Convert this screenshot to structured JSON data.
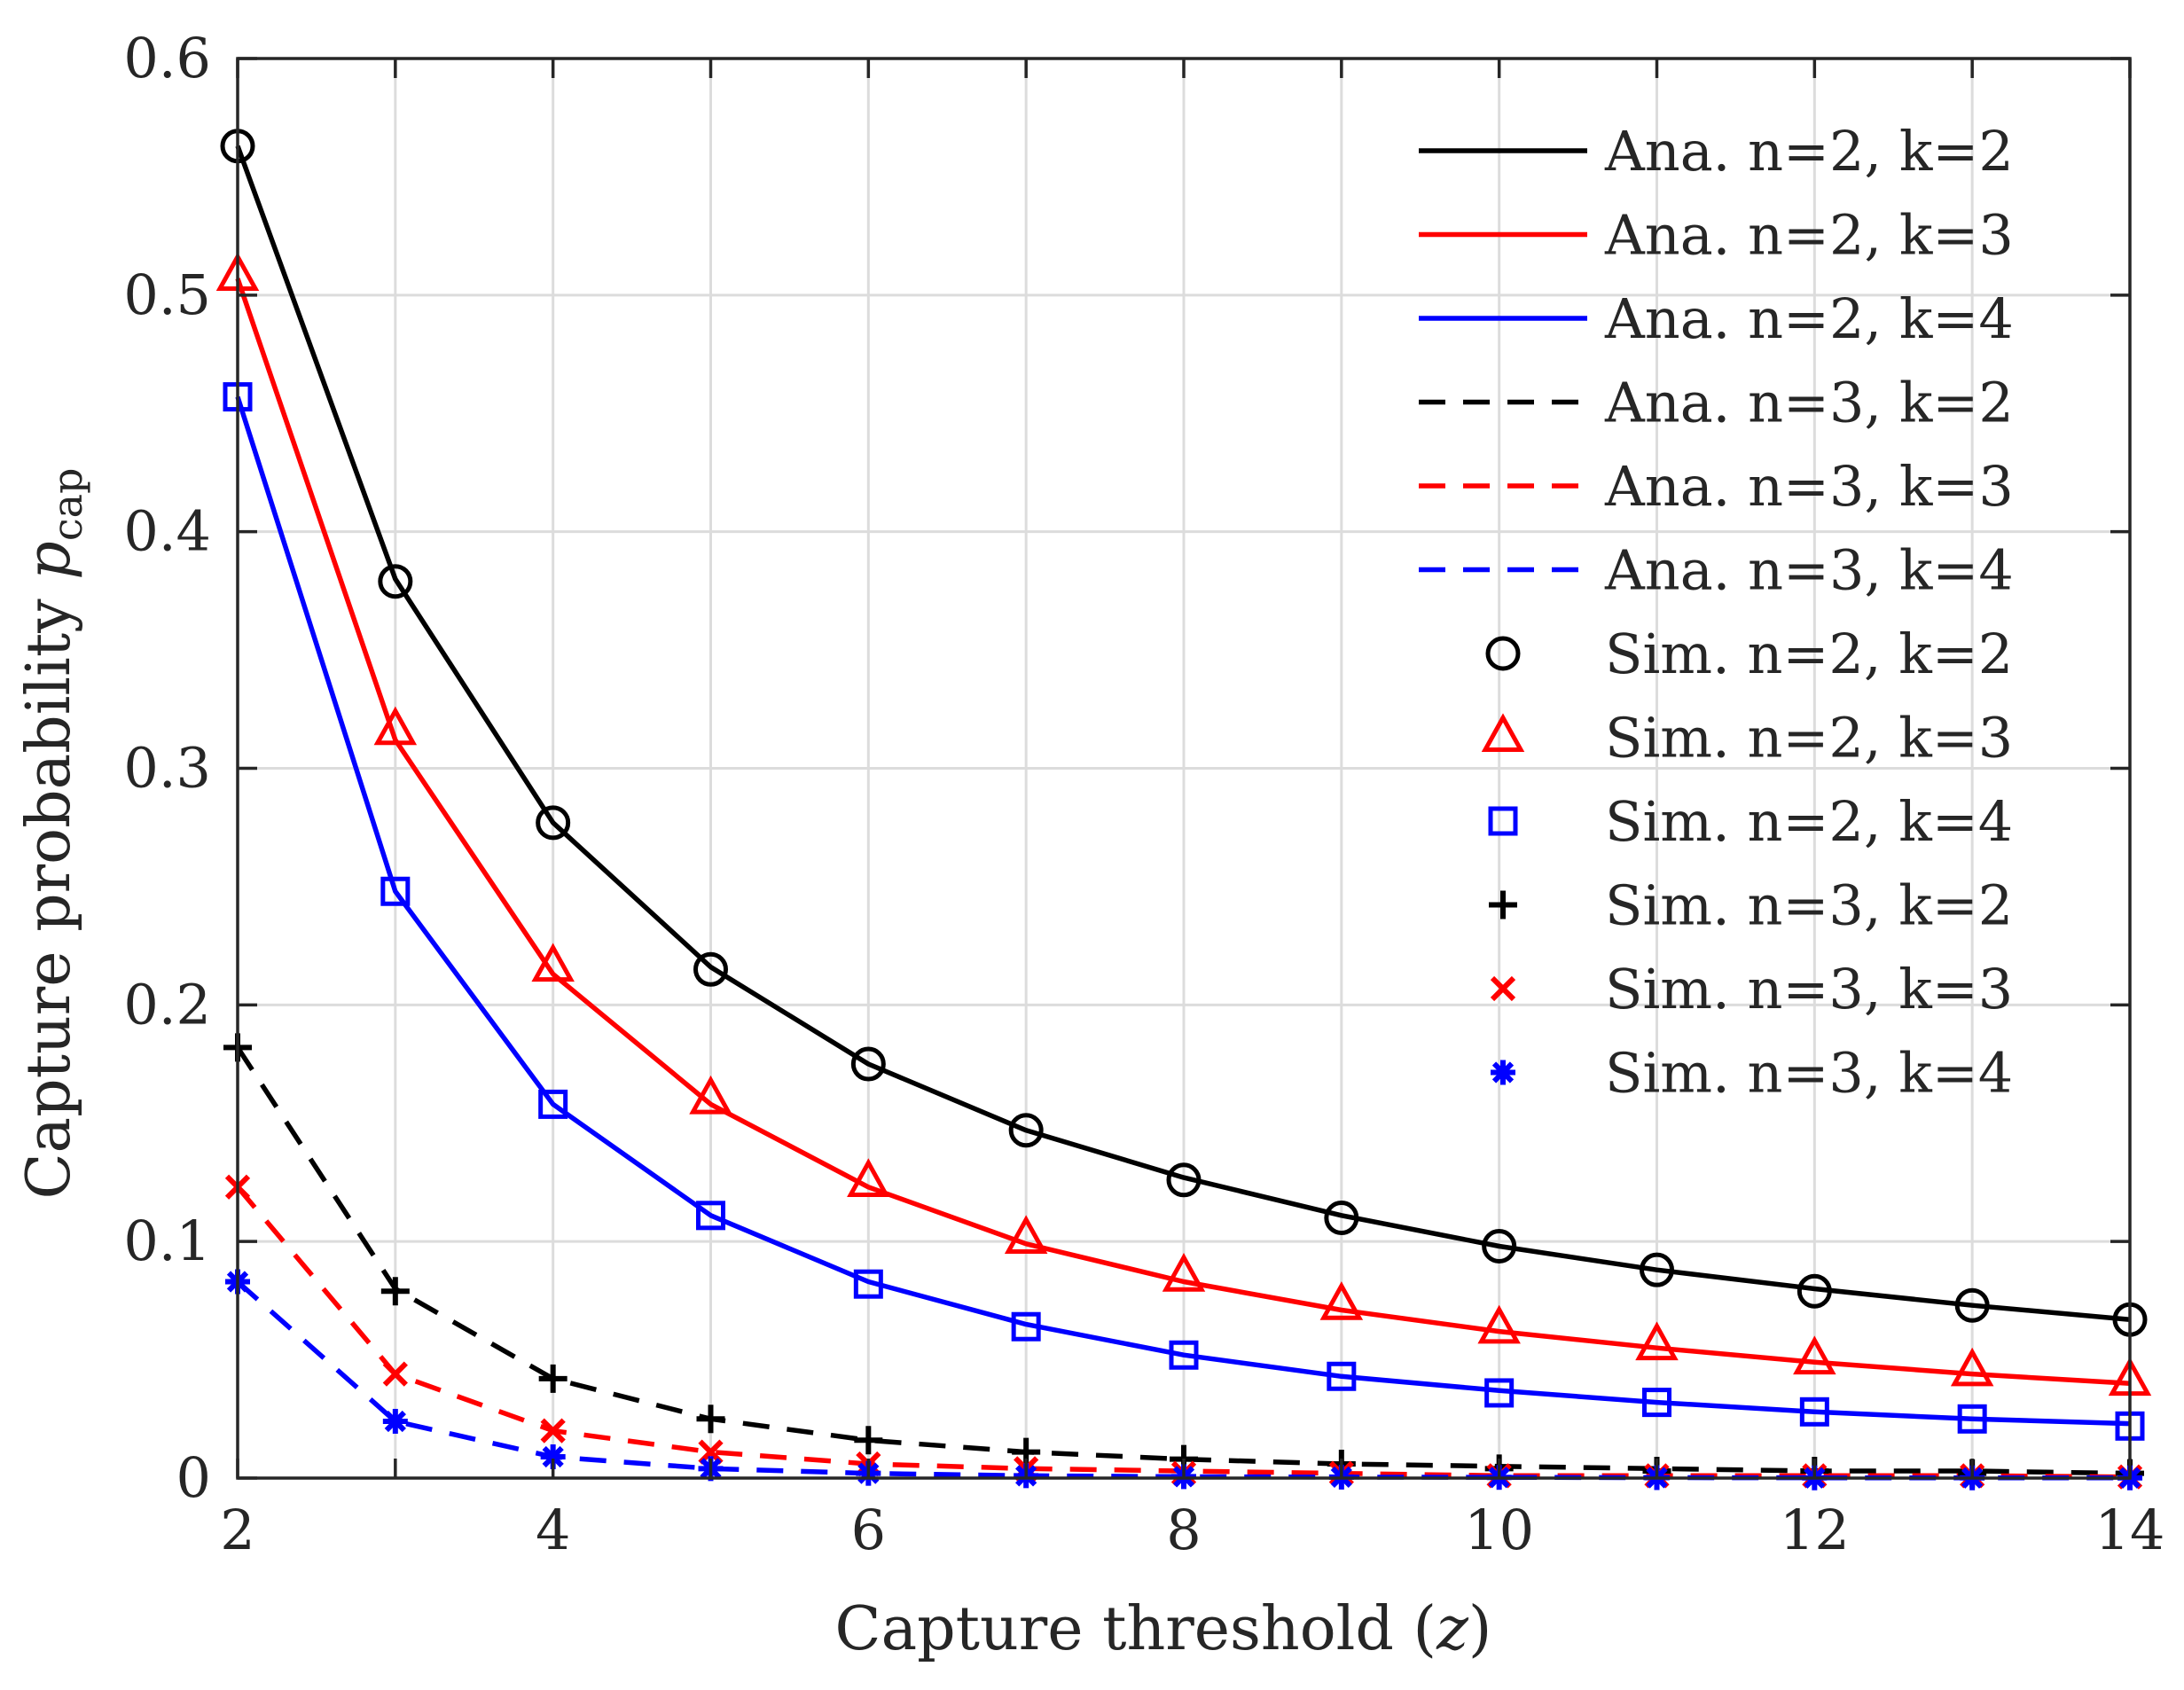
{
  "chart_data": {
    "type": "line",
    "xlabel": "Capture threshold",
    "xlabel_var": "z",
    "ylabel": "Capture probability",
    "ylabel_var": "p",
    "ylabel_sub": "cap",
    "xlim": [
      2,
      14
    ],
    "ylim": [
      0,
      0.6
    ],
    "xticks": [
      "2",
      "4",
      "6",
      "8",
      "10",
      "12",
      "14"
    ],
    "yticks": [
      "0",
      "0.1",
      "0.2",
      "0.3",
      "0.4",
      "0.5",
      "0.6"
    ],
    "grid": true,
    "legend_position": "top-right",
    "x": [
      2,
      3,
      4,
      5,
      6,
      7,
      8,
      9,
      10,
      11,
      12,
      13,
      14
    ],
    "series": [
      {
        "name": "Ana. n=2, k=2",
        "kind": "line",
        "dash": "solid",
        "color": "#000000",
        "values": [
          0.563,
          0.38,
          0.277,
          0.216,
          0.175,
          0.147,
          0.127,
          0.111,
          0.098,
          0.088,
          0.08,
          0.073,
          0.067
        ]
      },
      {
        "name": "Ana. n=2, k=3",
        "kind": "line",
        "dash": "solid",
        "color": "#ff0000",
        "values": [
          0.507,
          0.312,
          0.213,
          0.158,
          0.123,
          0.099,
          0.083,
          0.071,
          0.062,
          0.055,
          0.049,
          0.044,
          0.04
        ]
      },
      {
        "name": "Ana. n=2, k=4",
        "kind": "line",
        "dash": "solid",
        "color": "#0000ff",
        "values": [
          0.457,
          0.248,
          0.158,
          0.111,
          0.083,
          0.065,
          0.052,
          0.043,
          0.037,
          0.032,
          0.028,
          0.025,
          0.023
        ]
      },
      {
        "name": "Ana. n=3, k=2",
        "kind": "line",
        "dash": "dashed",
        "color": "#000000",
        "values": [
          0.182,
          0.08,
          0.042,
          0.025,
          0.016,
          0.011,
          0.008,
          0.006,
          0.005,
          0.004,
          0.003,
          0.003,
          0.002
        ]
      },
      {
        "name": "Ana. n=3, k=3",
        "kind": "line",
        "dash": "dashed",
        "color": "#ff0000",
        "values": [
          0.123,
          0.044,
          0.02,
          0.011,
          0.006,
          0.004,
          0.003,
          0.002,
          0.001,
          0.001,
          0.001,
          0.001,
          0.0005
        ]
      },
      {
        "name": "Ana. n=3, k=4",
        "kind": "line",
        "dash": "dashed",
        "color": "#0000ff",
        "values": [
          0.083,
          0.024,
          0.009,
          0.004,
          0.002,
          0.001,
          0.0006,
          0.0004,
          0.0003,
          0.0002,
          0.0001,
          0.0001,
          0.0001
        ]
      },
      {
        "name": "Sim. n=2, k=2",
        "kind": "marker",
        "marker": "circle",
        "color": "#000000",
        "values": [
          0.563,
          0.379,
          0.277,
          0.215,
          0.175,
          0.147,
          0.126,
          0.11,
          0.098,
          0.088,
          0.079,
          0.073,
          0.067
        ]
      },
      {
        "name": "Sim. n=2, k=3",
        "kind": "marker",
        "marker": "triangle",
        "color": "#ff0000",
        "values": [
          0.508,
          0.316,
          0.216,
          0.16,
          0.125,
          0.101,
          0.085,
          0.073,
          0.063,
          0.056,
          0.05,
          0.045,
          0.041
        ]
      },
      {
        "name": "Sim. n=2, k=4",
        "kind": "marker",
        "marker": "square",
        "color": "#0000ff",
        "values": [
          0.457,
          0.248,
          0.158,
          0.111,
          0.082,
          0.064,
          0.052,
          0.043,
          0.036,
          0.032,
          0.028,
          0.025,
          0.022
        ]
      },
      {
        "name": "Sim. n=3, k=2",
        "kind": "marker",
        "marker": "plus",
        "color": "#000000",
        "values": [
          0.182,
          0.079,
          0.042,
          0.025,
          0.016,
          0.011,
          0.008,
          0.006,
          0.004,
          0.003,
          0.003,
          0.002,
          0.002
        ]
      },
      {
        "name": "Sim. n=3, k=3",
        "kind": "marker",
        "marker": "x",
        "color": "#ff0000",
        "values": [
          0.123,
          0.044,
          0.02,
          0.011,
          0.006,
          0.004,
          0.002,
          0.002,
          0.001,
          0.001,
          0.001,
          0.001,
          0.0005
        ]
      },
      {
        "name": "Sim. n=3, k=4",
        "kind": "marker",
        "marker": "asterisk",
        "color": "#0000ff",
        "values": [
          0.083,
          0.024,
          0.009,
          0.004,
          0.002,
          0.001,
          0.0006,
          0.0004,
          0.0003,
          0.0002,
          0.0001,
          0.0001,
          0.0001
        ]
      }
    ]
  }
}
